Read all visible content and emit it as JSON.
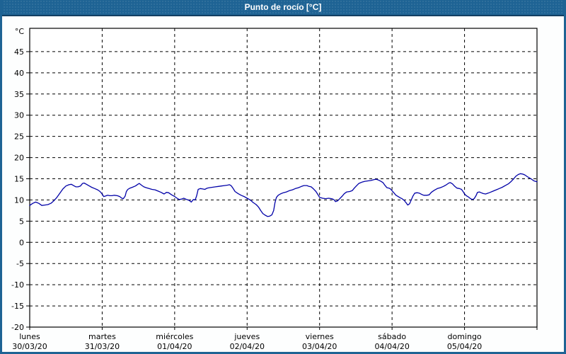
{
  "header": {
    "title": "Punto de rocío [°C]"
  },
  "colors": {
    "header_bg": "#1e6394",
    "header_border": "#123f63",
    "page_border": "#1e6394",
    "plot_bg": "#ffffff",
    "axis": "#000000",
    "line": "#0202a8"
  },
  "chart_data": {
    "type": "line",
    "title": "Punto de rocío [°C]",
    "y_unit_label": "°C",
    "ylim": [
      -20,
      50.5
    ],
    "y_ticks": [
      45,
      40,
      35,
      30,
      25,
      20,
      15,
      10,
      5,
      0,
      -5,
      -10,
      -15,
      -20
    ],
    "grid": "dashed",
    "legend": "none",
    "x_range_hours": [
      0,
      168
    ],
    "x_days": [
      {
        "name": "lunes",
        "date": "30/03/20"
      },
      {
        "name": "martes",
        "date": "31/03/20"
      },
      {
        "name": "miércoles",
        "date": "01/04/20"
      },
      {
        "name": "jueves",
        "date": "02/04/20"
      },
      {
        "name": "viernes",
        "date": "03/04/20"
      },
      {
        "name": "sábado",
        "date": "04/04/20"
      },
      {
        "name": "domingo",
        "date": "05/04/20"
      }
    ],
    "series": [
      {
        "name": "Punto de rocío",
        "color": "#0202a8",
        "points": [
          [
            0,
            8.7
          ],
          [
            1,
            9.2
          ],
          [
            2,
            9.5
          ],
          [
            3,
            9.2
          ],
          [
            4,
            8.7
          ],
          [
            5,
            8.8
          ],
          [
            6,
            8.9
          ],
          [
            7,
            9.2
          ],
          [
            8,
            9.8
          ],
          [
            9,
            10.6
          ],
          [
            10,
            11.6
          ],
          [
            11,
            12.6
          ],
          [
            12,
            13.3
          ],
          [
            13,
            13.6
          ],
          [
            13.8,
            13.7
          ],
          [
            14.5,
            13.4
          ],
          [
            15.3,
            13.1
          ],
          [
            16,
            13.1
          ],
          [
            16.8,
            13.3
          ],
          [
            17.5,
            13.9
          ],
          [
            18,
            14.0
          ],
          [
            18.8,
            13.7
          ],
          [
            19.5,
            13.4
          ],
          [
            20.5,
            13.0
          ],
          [
            21.5,
            12.7
          ],
          [
            22.5,
            12.4
          ],
          [
            23.3,
            12.0
          ],
          [
            24,
            11.4
          ],
          [
            24.5,
            10.8
          ],
          [
            25,
            10.9
          ],
          [
            25.8,
            11.1
          ],
          [
            26.5,
            11.0
          ],
          [
            27.3,
            11.0
          ],
          [
            28,
            11.1
          ],
          [
            29,
            11.0
          ],
          [
            29.8,
            10.8
          ],
          [
            30.5,
            10.4
          ],
          [
            31,
            10.3
          ],
          [
            31.6,
            10.9
          ],
          [
            32,
            12.0
          ],
          [
            32.5,
            12.5
          ],
          [
            33.2,
            12.8
          ],
          [
            34,
            13.0
          ],
          [
            35,
            13.3
          ],
          [
            35.8,
            13.7
          ],
          [
            36.3,
            13.9
          ],
          [
            37,
            13.5
          ],
          [
            37.8,
            13.1
          ],
          [
            38.6,
            12.9
          ],
          [
            39.5,
            12.7
          ],
          [
            40.5,
            12.5
          ],
          [
            41.5,
            12.4
          ],
          [
            42.5,
            12.1
          ],
          [
            43.5,
            11.8
          ],
          [
            44.5,
            11.4
          ],
          [
            45.3,
            11.8
          ],
          [
            46,
            11.7
          ],
          [
            47,
            11.2
          ],
          [
            48,
            10.8
          ],
          [
            48.8,
            10.4
          ],
          [
            49.5,
            10.1
          ],
          [
            50.3,
            10.2
          ],
          [
            51,
            10.4
          ],
          [
            52,
            10.1
          ],
          [
            52.8,
            9.9
          ],
          [
            53.5,
            9.5
          ],
          [
            54.2,
            10.1
          ],
          [
            54.8,
            10.0
          ],
          [
            55.3,
            11.0
          ],
          [
            55.8,
            12.5
          ],
          [
            56.5,
            12.7
          ],
          [
            57.3,
            12.6
          ],
          [
            58,
            12.5
          ],
          [
            58.8,
            12.8
          ],
          [
            59.5,
            12.9
          ],
          [
            60.5,
            13.0
          ],
          [
            61.5,
            13.1
          ],
          [
            62.5,
            13.2
          ],
          [
            63.5,
            13.3
          ],
          [
            64.5,
            13.4
          ],
          [
            65.5,
            13.5
          ],
          [
            66.2,
            13.6
          ],
          [
            66.8,
            13.3
          ],
          [
            67.3,
            12.8
          ],
          [
            68,
            12.0
          ],
          [
            69,
            11.5
          ],
          [
            70,
            11.1
          ],
          [
            71,
            10.8
          ],
          [
            72,
            10.4
          ],
          [
            73,
            10.0
          ],
          [
            74,
            9.4
          ],
          [
            75,
            8.9
          ],
          [
            75.8,
            8.3
          ],
          [
            76.5,
            7.5
          ],
          [
            77.2,
            6.8
          ],
          [
            78,
            6.4
          ],
          [
            78.8,
            6.1
          ],
          [
            79.5,
            6.2
          ],
          [
            80.2,
            6.5
          ],
          [
            80.8,
            7.5
          ],
          [
            81.2,
            9.3
          ],
          [
            81.7,
            10.6
          ],
          [
            82.3,
            11.1
          ],
          [
            83,
            11.4
          ],
          [
            84,
            11.7
          ],
          [
            85,
            11.9
          ],
          [
            86,
            12.2
          ],
          [
            87,
            12.4
          ],
          [
            88,
            12.7
          ],
          [
            89,
            12.9
          ],
          [
            90,
            13.2
          ],
          [
            90.8,
            13.4
          ],
          [
            91.8,
            13.4
          ],
          [
            92.5,
            13.2
          ],
          [
            93.2,
            13.1
          ],
          [
            94,
            12.6
          ],
          [
            94.8,
            12.0
          ],
          [
            95.4,
            11.3
          ],
          [
            96,
            10.6
          ],
          [
            97,
            10.4
          ],
          [
            98,
            10.3
          ],
          [
            99,
            10.4
          ],
          [
            100,
            10.3
          ],
          [
            100.7,
            10.1
          ],
          [
            101.3,
            9.6
          ],
          [
            102,
            9.8
          ],
          [
            102.7,
            10.3
          ],
          [
            103.5,
            10.9
          ],
          [
            104.2,
            11.5
          ],
          [
            105,
            11.9
          ],
          [
            106,
            12.0
          ],
          [
            106.8,
            12.2
          ],
          [
            107.5,
            12.8
          ],
          [
            108.3,
            13.4
          ],
          [
            109,
            13.9
          ],
          [
            110,
            14.2
          ],
          [
            111,
            14.4
          ],
          [
            112,
            14.5
          ],
          [
            113,
            14.6
          ],
          [
            114,
            14.8
          ],
          [
            114.7,
            14.9
          ],
          [
            115.5,
            14.7
          ],
          [
            116.3,
            14.4
          ],
          [
            117,
            14.1
          ],
          [
            117.7,
            13.4
          ],
          [
            118.3,
            12.9
          ],
          [
            119,
            12.8
          ],
          [
            119.5,
            12.6
          ],
          [
            120,
            12.2
          ],
          [
            120.7,
            11.6
          ],
          [
            121.3,
            11.1
          ],
          [
            122,
            10.8
          ],
          [
            122.7,
            10.5
          ],
          [
            123.3,
            10.3
          ],
          [
            124,
            9.9
          ],
          [
            124.7,
            9.3
          ],
          [
            125.2,
            8.8
          ],
          [
            125.8,
            9.1
          ],
          [
            126.3,
            9.9
          ],
          [
            126.9,
            10.9
          ],
          [
            127.5,
            11.6
          ],
          [
            128.3,
            11.7
          ],
          [
            129,
            11.6
          ],
          [
            129.8,
            11.3
          ],
          [
            130.5,
            11.1
          ],
          [
            131.5,
            11.1
          ],
          [
            132.3,
            11.2
          ],
          [
            133,
            11.8
          ],
          [
            134,
            12.3
          ],
          [
            135,
            12.7
          ],
          [
            136,
            12.9
          ],
          [
            137,
            13.2
          ],
          [
            138,
            13.6
          ],
          [
            138.8,
            14.0
          ],
          [
            139.3,
            14.1
          ],
          [
            140,
            13.8
          ],
          [
            140.8,
            13.2
          ],
          [
            141.5,
            12.8
          ],
          [
            142.3,
            12.7
          ],
          [
            143,
            12.5
          ],
          [
            143.6,
            11.9
          ],
          [
            144,
            11.4
          ],
          [
            144.6,
            11.0
          ],
          [
            145.3,
            10.7
          ],
          [
            146,
            10.3
          ],
          [
            146.6,
            10.1
          ],
          [
            147.2,
            10.3
          ],
          [
            147.8,
            11.0
          ],
          [
            148.3,
            11.8
          ],
          [
            148.9,
            11.9
          ],
          [
            149.5,
            11.7
          ],
          [
            150.2,
            11.5
          ],
          [
            151,
            11.4
          ],
          [
            151.8,
            11.6
          ],
          [
            152.5,
            11.8
          ],
          [
            153.5,
            12.1
          ],
          [
            154.5,
            12.4
          ],
          [
            155.5,
            12.7
          ],
          [
            156.5,
            13.0
          ],
          [
            157.5,
            13.4
          ],
          [
            158.5,
            13.8
          ],
          [
            159.5,
            14.4
          ],
          [
            160.3,
            15.0
          ],
          [
            161,
            15.6
          ],
          [
            161.8,
            16.0
          ],
          [
            162.5,
            16.2
          ],
          [
            163.3,
            16.1
          ],
          [
            164,
            15.9
          ],
          [
            164.8,
            15.5
          ],
          [
            165.5,
            15.2
          ],
          [
            166.2,
            14.9
          ],
          [
            167,
            14.5
          ],
          [
            167.5,
            14.4
          ],
          [
            168,
            14.3
          ]
        ]
      }
    ]
  }
}
